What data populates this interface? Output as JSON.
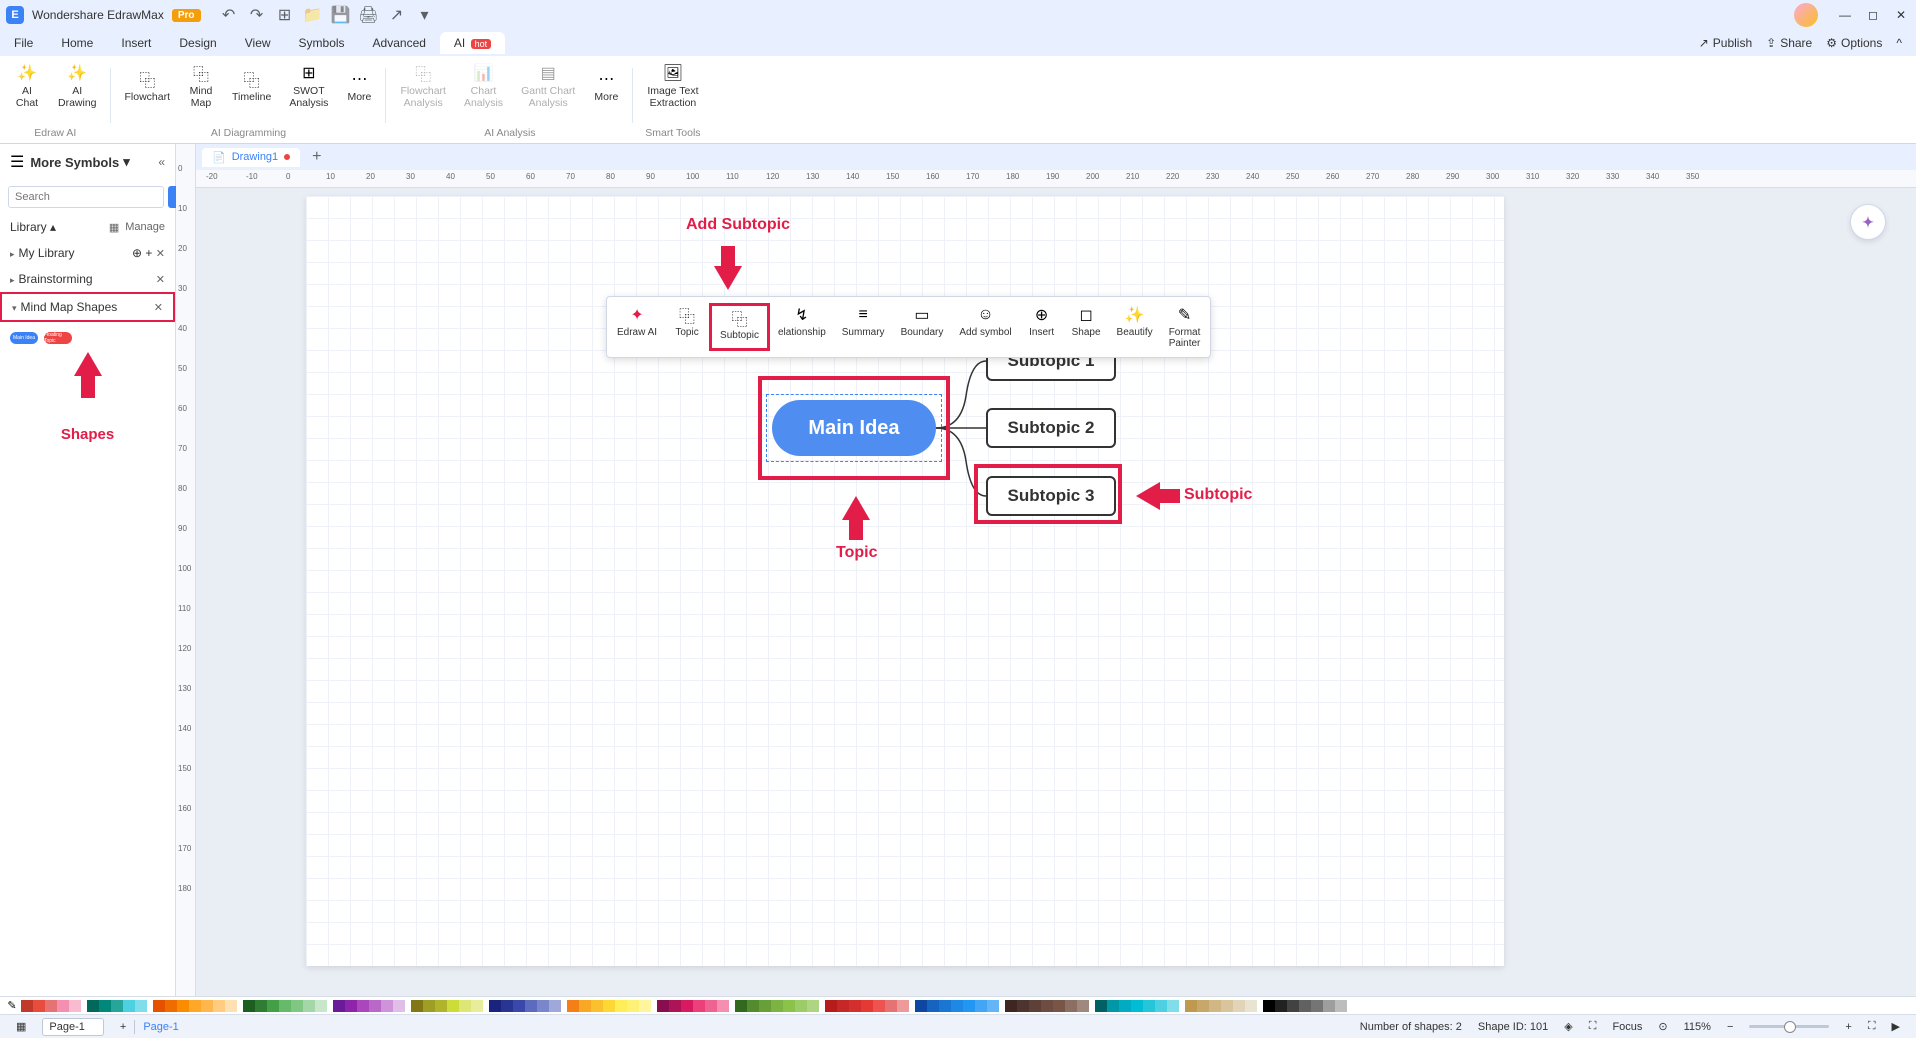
{
  "app": {
    "name": "Wondershare EdrawMax",
    "badge": "Pro"
  },
  "menubar": {
    "items": [
      "File",
      "Home",
      "Insert",
      "Design",
      "View",
      "Symbols",
      "Advanced"
    ],
    "ai": "AI",
    "ai_badge": "hot",
    "right": {
      "publish": "Publish",
      "share": "Share",
      "options": "Options"
    }
  },
  "ribbon": {
    "group1": {
      "label": "Edraw AI",
      "btns": {
        "ai_chat": "AI\nChat",
        "ai_drawing": "AI\nDrawing"
      }
    },
    "group2": {
      "label": "AI Diagramming",
      "btns": {
        "flowchart": "Flowchart",
        "mindmap": "Mind\nMap",
        "timeline": "Timeline",
        "swot": "SWOT\nAnalysis",
        "more": "More"
      }
    },
    "group3": {
      "label": "AI Analysis",
      "btns": {
        "flowchart_a": "Flowchart\nAnalysis",
        "chart_a": "Chart\nAnalysis",
        "gantt_a": "Gantt Chart\nAnalysis",
        "more2": "More"
      }
    },
    "group4": {
      "label": "Smart Tools",
      "btns": {
        "img_text": "Image Text\nExtraction"
      }
    }
  },
  "sidebar": {
    "title": "More Symbols",
    "search_placeholder": "Search",
    "search_btn": "Search",
    "library": "Library",
    "manage": "Manage",
    "sections": {
      "my_library": "My Library",
      "brainstorming": "Brainstorming",
      "mindmap_shapes": "Mind Map Shapes"
    },
    "shapes_label": "Shapes",
    "mini1": "Main Idea",
    "mini2": "Floating Topic"
  },
  "doc": {
    "tab_name": "Drawing1"
  },
  "float_toolbar": {
    "edraw_ai": "Edraw AI",
    "topic": "Topic",
    "subtopic": "Subtopic",
    "relationship": "elationship",
    "summary": "Summary",
    "boundary": "Boundary",
    "add_symbol": "Add symbol",
    "insert": "Insert",
    "shape": "Shape",
    "beautify": "Beautify",
    "format_painter": "Format\nPainter"
  },
  "mindmap": {
    "main_idea": "Main Idea",
    "sub1": "Subtopic 1",
    "sub2": "Subtopic 2",
    "sub3": "Subtopic 3",
    "main_color": "#4f8ef0",
    "highlight_color": "#e11d48"
  },
  "annotations": {
    "add_subtopic": "Add Subtopic",
    "topic": "Topic",
    "subtopic": "Subtopic"
  },
  "hruler_ticks": [
    "-20",
    "-10",
    "0",
    "10",
    "20",
    "30",
    "40",
    "50",
    "60",
    "70",
    "80",
    "90",
    "100",
    "110",
    "120",
    "130",
    "140",
    "150",
    "160",
    "170",
    "180",
    "190",
    "200",
    "210",
    "220",
    "230",
    "240",
    "250",
    "260",
    "270",
    "280",
    "290",
    "300",
    "310",
    "320",
    "330",
    "340",
    "350"
  ],
  "vruler_ticks": [
    "0",
    "10",
    "20",
    "30",
    "40",
    "50",
    "60",
    "70",
    "80",
    "90",
    "100",
    "110",
    "120",
    "130",
    "140",
    "150",
    "160",
    "170",
    "180",
    "190"
  ],
  "palette": {
    "reds": [
      "#c0392b",
      "#e74c3c",
      "#e57373",
      "#f48fb1",
      "#f8bbd0"
    ],
    "teals": [
      "#00695c",
      "#00897b",
      "#26a69a",
      "#4dd0e1",
      "#80deea"
    ],
    "oranges": [
      "#e65100",
      "#ef6c00",
      "#fb8c00",
      "#ffa726",
      "#ffb74d",
      "#ffcc80",
      "#ffe0b2"
    ],
    "greens": [
      "#1b5e20",
      "#2e7d32",
      "#43a047",
      "#66bb6a",
      "#81c784",
      "#a5d6a7",
      "#c8e6c9"
    ],
    "purples": [
      "#6a1b9a",
      "#8e24aa",
      "#ab47bc",
      "#ba68c8",
      "#ce93d8",
      "#e1bee7"
    ],
    "limes": [
      "#827717",
      "#9e9d24",
      "#afb42b",
      "#cddc39",
      "#dce775",
      "#e6ee9c"
    ],
    "blues": [
      "#1a237e",
      "#283593",
      "#3949ab",
      "#5c6bc0",
      "#7986cb",
      "#9fa8da"
    ],
    "yellows": [
      "#f57f17",
      "#f9a825",
      "#fbc02d",
      "#fdd835",
      "#ffee58",
      "#fff176",
      "#fff59d"
    ],
    "pinks": [
      "#880e4f",
      "#ad1457",
      "#d81b60",
      "#ec407a",
      "#f06292",
      "#f48fb1"
    ],
    "greens2": [
      "#33691e",
      "#558b2f",
      "#689f38",
      "#7cb342",
      "#8bc34a",
      "#9ccc65",
      "#aed581"
    ],
    "reds2": [
      "#b71c1c",
      "#c62828",
      "#d32f2f",
      "#e53935",
      "#ef5350",
      "#e57373",
      "#ef9a9a"
    ],
    "blues2": [
      "#0d47a1",
      "#1565c0",
      "#1976d2",
      "#1e88e5",
      "#2196f3",
      "#42a5f5",
      "#64b5f6"
    ],
    "browns": [
      "#3e2723",
      "#4e342e",
      "#5d4037",
      "#6d4c41",
      "#795548",
      "#8d6e63",
      "#a1887f"
    ],
    "cyans": [
      "#006064",
      "#0097a7",
      "#00acc1",
      "#00bcd4",
      "#26c6da",
      "#4dd0e1",
      "#80deea"
    ],
    "tans": [
      "#bf9950",
      "#c7a86a",
      "#d0b784",
      "#d8c59e",
      "#e1d4b8",
      "#e9e3d2"
    ],
    "grays": [
      "#000000",
      "#212121",
      "#424242",
      "#616161",
      "#757575",
      "#9e9e9e",
      "#bdbdbd"
    ]
  },
  "statusbar": {
    "page_select": "Page-1",
    "page_tab": "Page-1",
    "shapes_count": "Number of shapes: 2",
    "shape_id": "Shape ID: 101",
    "focus": "Focus",
    "zoom": "115%"
  }
}
